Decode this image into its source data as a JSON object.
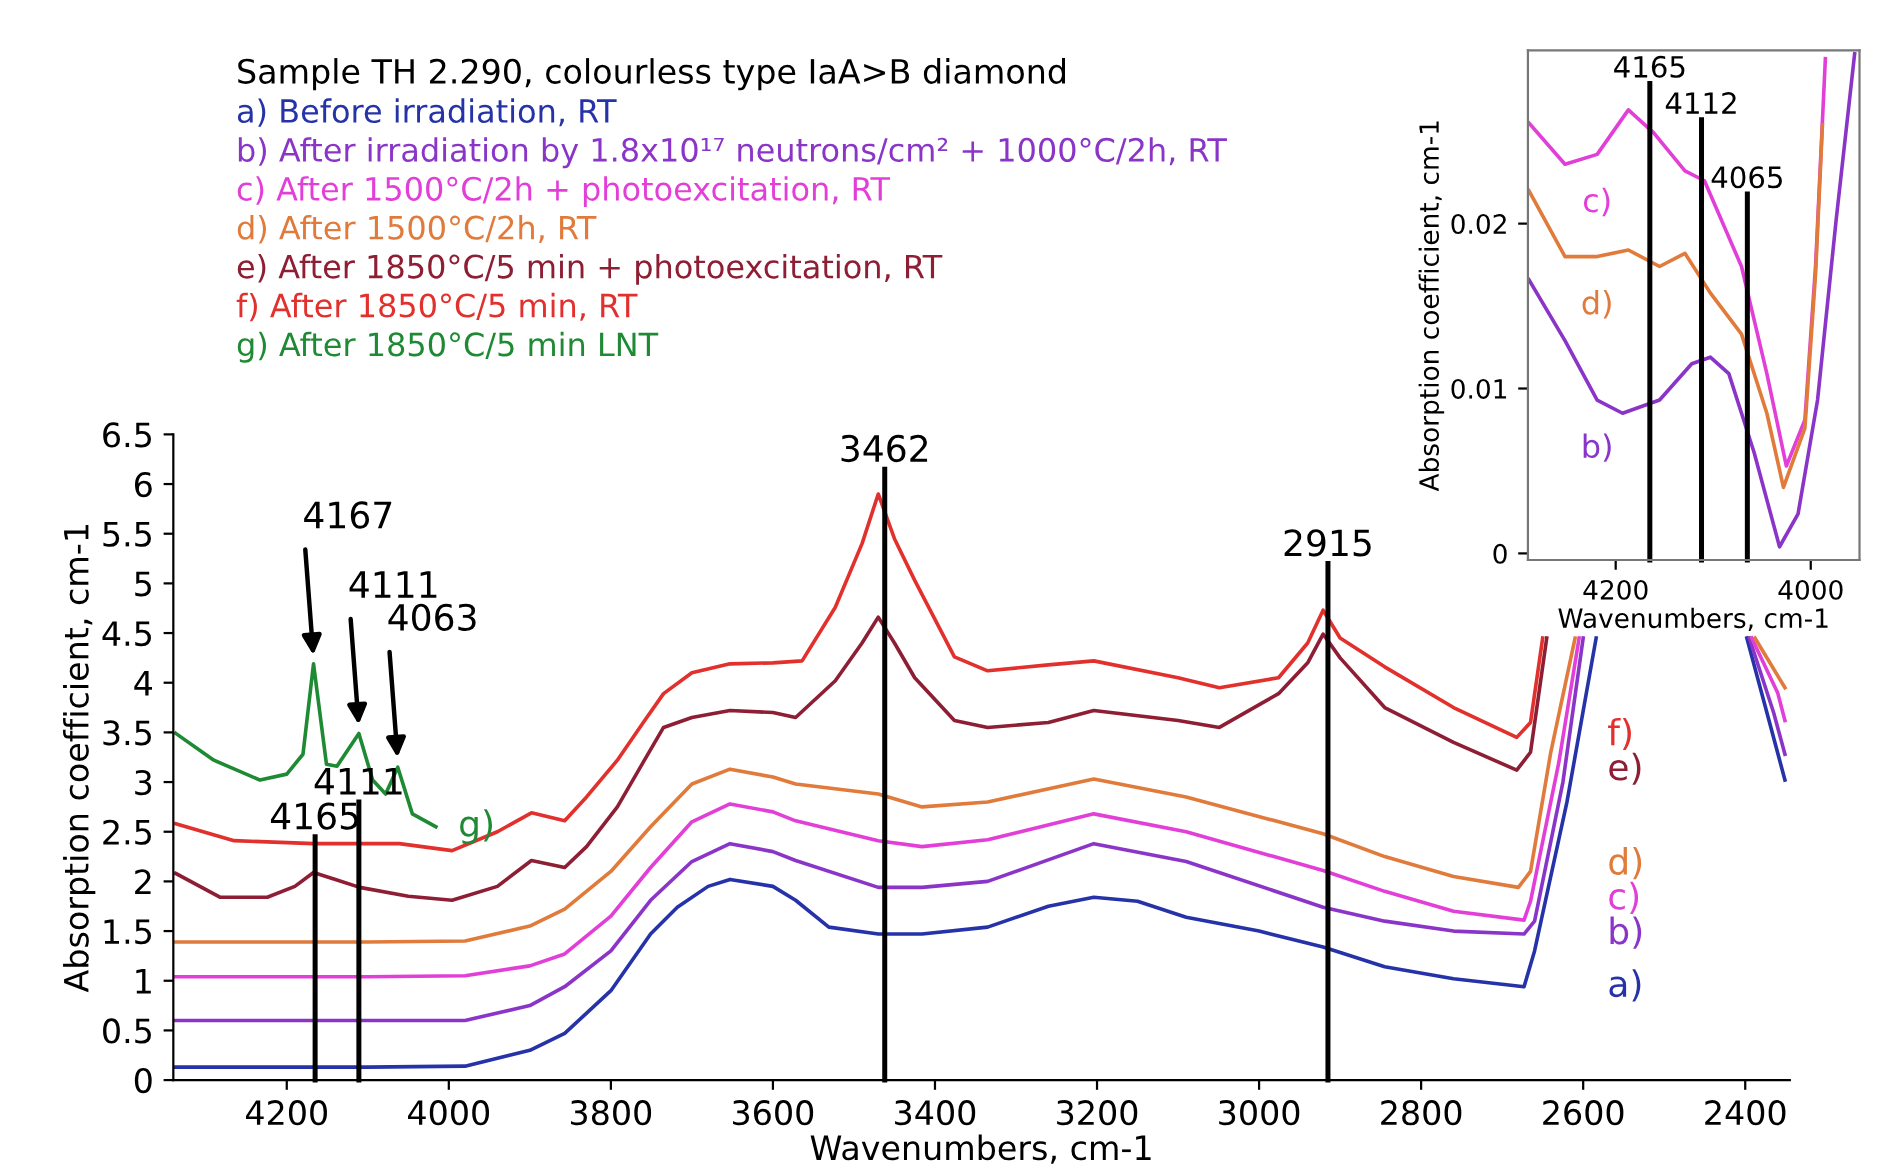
{
  "chart_data": [
    {
      "type": "line",
      "title": "Sample TH 2.290, colourless type IaA>B diamond",
      "xlabel": "Wavenumbers, cm-1",
      "ylabel": "Absorption coefficient, cm-1",
      "xlim": [
        4340,
        2345
      ],
      "xticks": [
        4200,
        4000,
        3800,
        3600,
        3400,
        3200,
        3000,
        2800,
        2600,
        2400
      ],
      "ylim": [
        0,
        6.5
      ],
      "yticks": [
        0,
        0.5,
        1,
        1.5,
        2,
        2.5,
        3,
        3.5,
        4,
        4.5,
        5,
        5.5,
        6,
        6.5
      ],
      "legend": "top left",
      "series": [
        {
          "name": "a) Before irradiation, RT",
          "color": "#2633a8",
          "x": [
            4337,
            4200,
            4100,
            3980,
            3900,
            3857,
            3800,
            3751,
            3718,
            3680,
            3653,
            3600,
            3572,
            3531,
            3470,
            3416,
            3335,
            3260,
            3204,
            3150,
            3090,
            3000,
            2921,
            2845,
            2760,
            2673,
            2660,
            2620,
            2584,
            2490,
            2398,
            2370,
            2351
          ],
          "values": [
            0.13,
            0.13,
            0.13,
            0.14,
            0.3,
            0.47,
            0.9,
            1.47,
            1.74,
            1.95,
            2.02,
            1.95,
            1.81,
            1.54,
            1.47,
            1.47,
            1.54,
            1.75,
            1.84,
            1.8,
            1.64,
            1.5,
            1.34,
            1.14,
            1.02,
            0.94,
            1.3,
            2.8,
            4.45,
            null,
            4.45,
            3.6,
            3.02
          ]
        },
        {
          "name": "b) After irradiation by 1.8x10¹⁷ neutrons/cm² + 1000°C/2h, RT",
          "color": "#8a35c8",
          "x": [
            4337,
            4200,
            4100,
            3980,
            3900,
            3857,
            3800,
            3751,
            3700,
            3653,
            3600,
            3572,
            3470,
            3416,
            3335,
            3204,
            3090,
            2921,
            2845,
            2760,
            2673,
            2660,
            2625,
            2600,
            2490,
            2395,
            2365,
            2351
          ],
          "values": [
            0.6,
            0.6,
            0.6,
            0.6,
            0.75,
            0.94,
            1.3,
            1.81,
            2.2,
            2.38,
            2.3,
            2.21,
            1.94,
            1.94,
            2.0,
            2.38,
            2.2,
            1.74,
            1.6,
            1.5,
            1.47,
            1.6,
            3.0,
            4.45,
            null,
            4.45,
            3.7,
            3.28
          ]
        },
        {
          "name": "c) After 1500°C/2h + photoexcitation, RT",
          "color": "#e23fd8",
          "x": [
            4337,
            4200,
            4100,
            3980,
            3900,
            3857,
            3800,
            3751,
            3700,
            3653,
            3600,
            3572,
            3470,
            3416,
            3335,
            3204,
            3090,
            2921,
            2845,
            2760,
            2673,
            2665,
            2630,
            2605,
            2490,
            2392,
            2360,
            2351
          ],
          "values": [
            1.04,
            1.04,
            1.04,
            1.05,
            1.15,
            1.27,
            1.65,
            2.14,
            2.6,
            2.78,
            2.7,
            2.61,
            2.41,
            2.35,
            2.42,
            2.68,
            2.5,
            2.11,
            1.9,
            1.7,
            1.61,
            1.8,
            3.2,
            4.45,
            null,
            4.45,
            3.9,
            3.62
          ]
        },
        {
          "name": "d) After 1500°C/2h, RT",
          "color": "#e07b3c",
          "x": [
            4337,
            4200,
            4100,
            3980,
            3900,
            3857,
            3800,
            3751,
            3700,
            3653,
            3600,
            3572,
            3470,
            3416,
            3335,
            3204,
            3090,
            2921,
            2845,
            2760,
            2680,
            2665,
            2640,
            2610,
            2490,
            2388,
            2351
          ],
          "values": [
            1.39,
            1.39,
            1.39,
            1.4,
            1.55,
            1.72,
            2.1,
            2.55,
            2.98,
            3.13,
            3.05,
            2.98,
            2.88,
            2.75,
            2.8,
            3.03,
            2.85,
            2.48,
            2.25,
            2.05,
            1.94,
            2.1,
            3.3,
            4.45,
            null,
            4.45,
            3.95
          ]
        },
        {
          "name": "e) After 1850°C/5 min + photoexcitation, RT",
          "color": "#8e1e34",
          "x": [
            4337,
            4282,
            4224,
            4190,
            4167,
            4140,
            4110,
            4050,
            3996,
            3940,
            3898,
            3857,
            3830,
            3792,
            3760,
            3735,
            3700,
            3653,
            3600,
            3572,
            3523,
            3490,
            3470,
            3450,
            3425,
            3376,
            3335,
            3260,
            3204,
            3100,
            3049,
            2976,
            2940,
            2921,
            2900,
            2845,
            2760,
            2682,
            2665,
            2645
          ],
          "values": [
            2.08,
            1.84,
            1.84,
            1.95,
            2.09,
            2.02,
            1.94,
            1.85,
            1.81,
            1.95,
            2.21,
            2.14,
            2.35,
            2.75,
            3.2,
            3.55,
            3.65,
            3.72,
            3.7,
            3.65,
            4.02,
            4.4,
            4.66,
            4.4,
            4.05,
            3.62,
            3.55,
            3.6,
            3.72,
            3.62,
            3.55,
            3.89,
            4.2,
            4.49,
            4.25,
            3.75,
            3.4,
            3.12,
            3.3,
            4.45
          ]
        },
        {
          "name": "f) After 1850°C/5 min, RT",
          "color": "#e2302c",
          "x": [
            4337,
            4265,
            4167,
            4061,
            3996,
            3940,
            3898,
            3857,
            3830,
            3792,
            3760,
            3735,
            3700,
            3653,
            3600,
            3564,
            3523,
            3490,
            3470,
            3450,
            3425,
            3376,
            3335,
            3260,
            3204,
            3100,
            3049,
            2976,
            2940,
            2921,
            2900,
            2845,
            2760,
            2682,
            2665,
            2650
          ],
          "values": [
            2.58,
            2.41,
            2.38,
            2.38,
            2.31,
            2.5,
            2.69,
            2.61,
            2.85,
            3.22,
            3.6,
            3.89,
            4.1,
            4.19,
            4.2,
            4.22,
            4.76,
            5.4,
            5.9,
            5.45,
            5.03,
            4.26,
            4.12,
            4.18,
            4.22,
            4.05,
            3.95,
            4.05,
            4.4,
            4.73,
            4.45,
            4.16,
            3.75,
            3.45,
            3.6,
            4.45
          ]
        },
        {
          "name": "g) After 1850°C/5 min LNT",
          "color": "#1f8a34",
          "x": [
            4337,
            4290,
            4233,
            4200,
            4180,
            4167,
            4151,
            4138,
            4111,
            4094,
            4078,
            4063,
            4045,
            4016
          ],
          "values": [
            3.49,
            3.22,
            3.02,
            3.08,
            3.28,
            4.19,
            3.18,
            3.16,
            3.49,
            3.02,
            2.88,
            3.15,
            2.68,
            2.55
          ]
        }
      ],
      "annotations": [
        "a)",
        "b)",
        "c)",
        "d)",
        "e)",
        "f)",
        "g)",
        {
          "text": "3462",
          "x": 3462,
          "y": 6.15
        },
        {
          "text": "2915",
          "x": 2915,
          "y": 5.2
        },
        {
          "text": "4165",
          "x": 4165,
          "y": 2.45
        },
        {
          "text": "4111",
          "x": 4111,
          "y": 2.8
        },
        {
          "text": "4167",
          "x": 4167,
          "y": 4.25
        },
        {
          "text": "4111",
          "x": 4111,
          "y": 3.55
        },
        {
          "text": "4063",
          "x": 4063,
          "y": 3.22
        }
      ],
      "ref_lines": [
        {
          "axis": "x",
          "value": 3462,
          "color": "#000000"
        },
        {
          "axis": "x",
          "value": 2915,
          "color": "#000000"
        },
        {
          "axis": "x",
          "value": 4165,
          "color": "#000000"
        },
        {
          "axis": "x",
          "value": 4111,
          "color": "#000000"
        }
      ]
    },
    {
      "type": "line",
      "xlabel": "Wavenumbers, cm-1",
      "ylabel": "Absorption coefficient, cm-1",
      "xlim": [
        4290,
        3950
      ],
      "xticks": [
        4200,
        4000
      ],
      "ylim": [
        -0.0004,
        0.0305
      ],
      "yticks": [
        0,
        0.01,
        0.02
      ],
      "series": [
        {
          "color": "#e23fd8",
          "x": [
            4289,
            4252,
            4219,
            4187,
            4161,
            4129,
            4109,
            4071,
            4045,
            4025,
            4006,
            3995,
            3985
          ],
          "values": [
            0.0261,
            0.0236,
            0.0242,
            0.0269,
            0.0255,
            0.0232,
            0.0226,
            0.0174,
            0.0109,
            0.0053,
            0.0081,
            0.0175,
            0.03
          ]
        },
        {
          "color": "#e07b3c",
          "x": [
            4289,
            4252,
            4219,
            4187,
            4155,
            4129,
            4103,
            4071,
            4045,
            4028,
            4006,
            3995,
            3988
          ],
          "values": [
            0.022,
            0.018,
            0.018,
            0.0184,
            0.0174,
            0.0182,
            0.0158,
            0.0133,
            0.0085,
            0.004,
            0.0076,
            0.017,
            0.026
          ]
        },
        {
          "color": "#8a35c8",
          "x": [
            4289,
            4252,
            4219,
            4193,
            4155,
            4122,
            4103,
            4084,
            4058,
            4032,
            4013,
            3993,
            3974,
            3955
          ],
          "values": [
            0.0166,
            0.0129,
            0.0093,
            0.0085,
            0.0093,
            0.0115,
            0.0119,
            0.0109,
            0.0061,
            0.0004,
            0.0024,
            0.0093,
            0.0202,
            0.0303
          ]
        }
      ],
      "annotations": [
        "c)",
        "d)",
        "b)",
        {
          "text": "4165",
          "x": 4165,
          "y": 0.0285
        },
        {
          "text": "4112",
          "x": 4112,
          "y": 0.0263
        },
        {
          "text": "4065",
          "x": 4065,
          "y": 0.0218
        }
      ],
      "ref_lines": [
        {
          "axis": "x",
          "value": 4165,
          "color": "#000000"
        },
        {
          "axis": "x",
          "value": 4112,
          "color": "#000000"
        },
        {
          "axis": "x",
          "value": 4065,
          "color": "#000000"
        }
      ]
    }
  ]
}
